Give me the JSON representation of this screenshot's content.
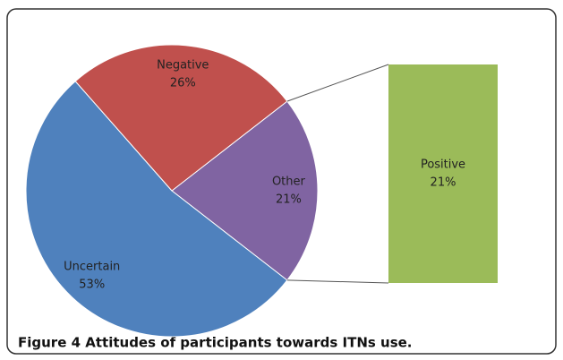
{
  "caption": "Figure 4 Attitudes of participants towards ITNs use.",
  "chart_data": {
    "type": "pie",
    "categories": [
      "Other",
      "Uncertain",
      "Negative"
    ],
    "values": [
      21,
      53,
      26
    ],
    "value_labels": [
      "21%",
      "53%",
      "26%"
    ],
    "colors": [
      "#8064a2",
      "#4f81bd",
      "#c0504d"
    ],
    "secondary": {
      "categories": [
        "Positive"
      ],
      "values": [
        21
      ],
      "value_labels": [
        "21%"
      ],
      "colors": [
        "#9bbb59"
      ]
    }
  }
}
